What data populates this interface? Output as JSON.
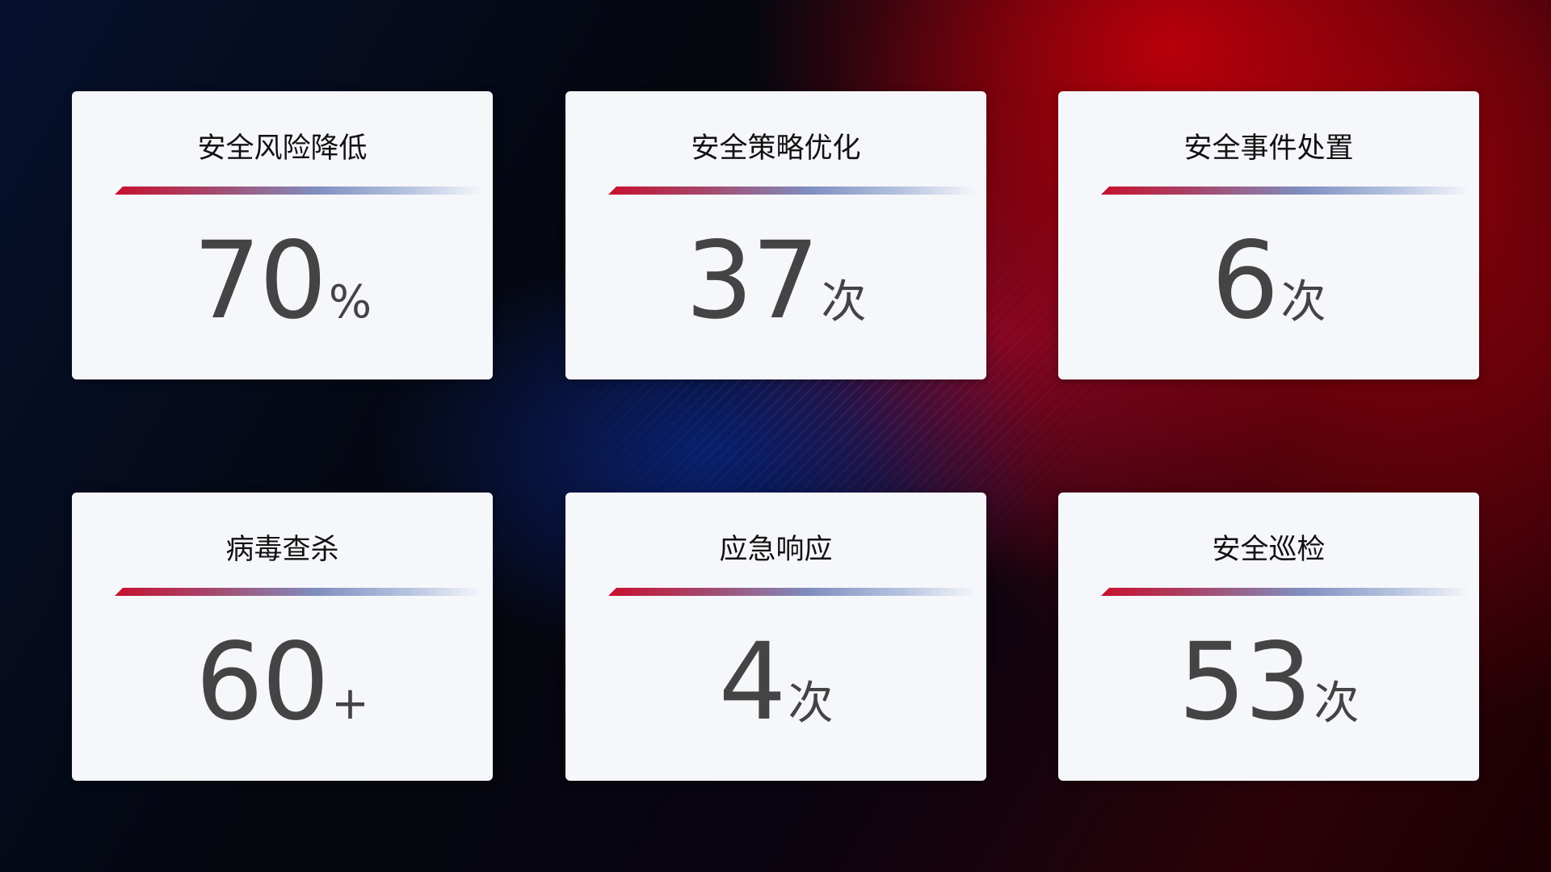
{
  "cards": [
    {
      "title": "安全风险降低",
      "value": "70",
      "unit": "%"
    },
    {
      "title": "安全策略优化",
      "value": "37",
      "unit": "次"
    },
    {
      "title": "安全事件处置",
      "value": "6",
      "unit": "次"
    },
    {
      "title": "病毒查杀",
      "value": "60",
      "unit": "+"
    },
    {
      "title": "应急响应",
      "value": "4",
      "unit": "次"
    },
    {
      "title": "安全巡检",
      "value": "53",
      "unit": "次"
    }
  ],
  "colors": {
    "accent_red": "#c8102e",
    "accent_blue": "#7f8fc0",
    "card_bg": "#f6f7fb",
    "number": "#444444"
  }
}
